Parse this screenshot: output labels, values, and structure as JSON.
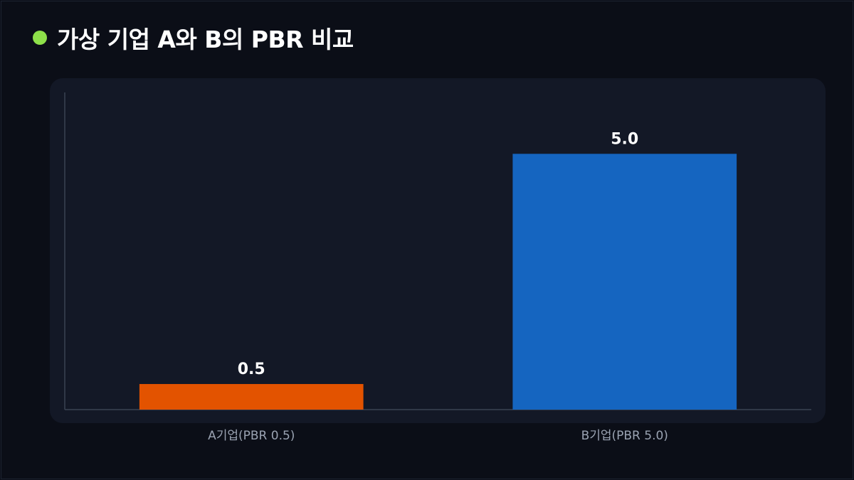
{
  "title": {
    "text": "가상 기업 A와 B의 PBR 비교",
    "dot_color": "#8ee04a"
  },
  "colors": {
    "background": "#0b0e17",
    "panel": "#131826",
    "axis": "#3a4252"
  },
  "chart_data": {
    "type": "bar",
    "title": "가상 기업 A와 B의 PBR 비교",
    "categories": [
      "A기업(PBR 0.5)",
      "B기업(PBR 5.0)"
    ],
    "values": [
      0.5,
      5.0
    ],
    "value_labels": [
      "0.5",
      "5.0"
    ],
    "bar_colors": [
      "#e35300",
      "#1565c0"
    ],
    "xlabel": "",
    "ylabel": "",
    "ylim": [
      0,
      6.2
    ],
    "grid": false,
    "legend": "none"
  }
}
